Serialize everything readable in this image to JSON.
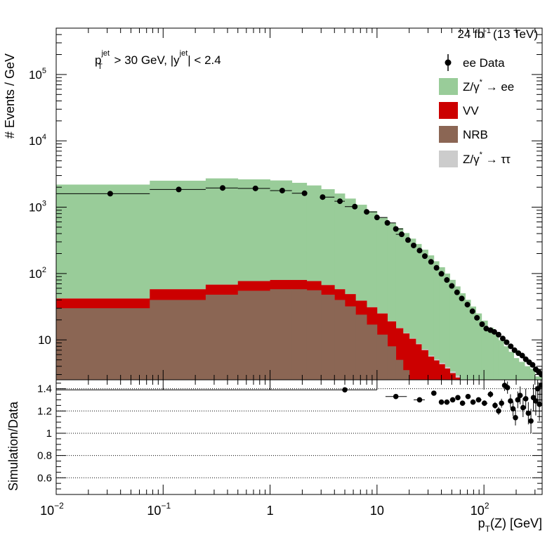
{
  "chart_data": {
    "type": "histogram",
    "x_scale": "log",
    "lumi_label": "24 fb",
    "lumi_sup": "-1",
    "lumi_energy": "(13 TeV)",
    "cut_label": {
      "pt": "p",
      "pt_sup": "jet",
      "pt_sub": "T",
      "pt_cut": " > 30 GeV,  |y",
      "y_sup": "jet",
      "y_cut": "| < 2.4"
    },
    "top_panel": {
      "ylabel": "# Events / GeV",
      "y_scale": "log",
      "ylim": [
        2.5,
        500000
      ],
      "y_ticks": [
        {
          "value": 10,
          "base": "10",
          "exp": ""
        },
        {
          "value": 100,
          "base": "10",
          "exp": "2"
        },
        {
          "value": 1000,
          "base": "10",
          "exp": "3"
        },
        {
          "value": 10000,
          "base": "10",
          "exp": "4"
        },
        {
          "value": 100000,
          "base": "10",
          "exp": "5"
        }
      ],
      "bin_edges": [
        0.01,
        0.075,
        0.25,
        0.5,
        1.0,
        1.6,
        2.2,
        3.0,
        4.0,
        5.0,
        6.3,
        8.0,
        10.0,
        12.5,
        15.0,
        17.5,
        20.0,
        23.0,
        26.0,
        30.0,
        34.0,
        38.0,
        43.0,
        48.0,
        54.0,
        60.0,
        67.0,
        75.0,
        84.0,
        95.0,
        108.0,
        122.0,
        137.0,
        153.0,
        170.0,
        190.0,
        212.0,
        240.0,
        270.0,
        300.0,
        350.0
      ],
      "stack": [
        {
          "name": "NRB",
          "color": "#8b6654",
          "values": [
            30,
            40,
            48,
            55,
            58,
            58,
            56,
            48,
            40,
            32,
            24,
            17,
            12,
            8,
            5,
            3.5,
            2.4,
            1.6,
            1,
            0.6,
            0.4,
            0.3,
            0.2,
            0.15,
            0.1,
            0.08,
            0.06,
            0.04,
            0.03,
            0.02,
            0.015,
            0.01,
            0.01,
            0.01,
            0.01,
            0.01,
            0.01,
            0.01,
            0.01,
            0.01
          ]
        },
        {
          "name": "VV",
          "color": "#cc0000",
          "values": [
            12,
            18,
            20,
            22,
            22,
            22,
            21,
            19,
            18,
            17,
            15,
            14,
            13,
            11,
            10,
            9,
            8,
            7,
            6,
            5,
            4.5,
            4,
            3.5,
            3,
            2.6,
            2.2,
            1.9,
            1.6,
            1.3,
            1.1,
            0.9,
            0.8,
            0.7,
            0.6,
            0.5,
            0.4,
            0.35,
            0.3,
            0.25,
            0.2
          ]
        },
        {
          "name": "Z/γ* → ττ",
          "color": "#cccccc",
          "values": [
            0.2,
            0.2,
            0.2,
            0.2,
            0.2,
            0.2,
            0.2,
            0.2,
            0.2,
            0.2,
            0.2,
            0.2,
            0.2,
            0.2,
            0.2,
            0.2,
            0.2,
            0.2,
            0.2,
            0.2,
            0.2,
            0.2,
            0.2,
            0.2,
            0.2,
            0.2,
            0.2,
            0.2,
            0.2,
            0.2,
            0.2,
            0.2,
            0.2,
            0.2,
            0.2,
            0.2,
            0.2,
            0.2,
            0.2,
            0.2
          ]
        },
        {
          "name": "Z/γ* → ee",
          "color": "#99cc99",
          "values": [
            2150,
            2450,
            2650,
            2550,
            2450,
            2250,
            2050,
            1800,
            1550,
            1300,
            1050,
            840,
            680,
            560,
            470,
            395,
            325,
            270,
            222,
            182,
            148,
            120,
            96,
            77,
            61,
            48,
            38,
            30,
            23.5,
            18.2,
            14.2,
            11.2,
            9,
            7.2,
            5.9,
            4.7,
            4.1,
            3.5,
            3.2,
            2.4
          ]
        }
      ],
      "data_label": "ee Data",
      "data_x": [
        0.032,
        0.14,
        0.36,
        0.73,
        1.3,
        2.1,
        3.1,
        4.5,
        6.2,
        8.0,
        10.0,
        12.5,
        15.0,
        17.0,
        19.5,
        22.0,
        25.0,
        28.0,
        32.0,
        36.0,
        40.0,
        45.0,
        50.0,
        56.0,
        62.0,
        70.0,
        78.0,
        86.0,
        96.0,
        105.0,
        115.0,
        125.0,
        137.0,
        150.0,
        163.0,
        178.0,
        193.0,
        210.0,
        228.0,
        246.0,
        265.0,
        285.0,
        305.0,
        325.0,
        345.0
      ],
      "data_y": [
        1600,
        1850,
        1950,
        1920,
        1780,
        1620,
        1420,
        1230,
        1020,
        850,
        700,
        580,
        470,
        390,
        320,
        265,
        222,
        183,
        150,
        122,
        99,
        80,
        65,
        52,
        42,
        34,
        27,
        21.5,
        17.2,
        14.8,
        14.0,
        13.2,
        12.0,
        10.5,
        9.2,
        8.0,
        7.0,
        6.3,
        5.8,
        5.1,
        4.6,
        4.2,
        3.6,
        3.3,
        3.0
      ]
    },
    "ratio_panel": {
      "ylabel": "Simulation/Data",
      "ylim": [
        0.45,
        1.48
      ],
      "y_ticks": [
        0.6,
        0.8,
        1,
        1.2,
        1.4
      ],
      "reference_lines": [
        0.6,
        0.8,
        1.0,
        1.2,
        1.4
      ],
      "points": [
        {
          "x": 5.0,
          "y": 1.39,
          "xlo": 0.01,
          "xhi": 10,
          "err": 0.01
        },
        {
          "x": 15.0,
          "y": 1.33,
          "xlo": 12,
          "xhi": 19,
          "err": 0.01
        },
        {
          "x": 25.0,
          "y": 1.3,
          "xlo": 22,
          "xhi": 28,
          "err": 0.01
        },
        {
          "x": 34.0,
          "y": 1.36,
          "xlo": 32,
          "xhi": 36,
          "err": 0.01
        },
        {
          "x": 40.0,
          "y": 1.28,
          "xlo": 38,
          "xhi": 43,
          "err": 0.012
        },
        {
          "x": 45.0,
          "y": 1.28,
          "xlo": 43,
          "xhi": 48,
          "err": 0.012
        },
        {
          "x": 51.0,
          "y": 1.3,
          "xlo": 48,
          "xhi": 54,
          "err": 0.013
        },
        {
          "x": 57.0,
          "y": 1.32,
          "xlo": 54,
          "xhi": 60,
          "err": 0.014
        },
        {
          "x": 63.0,
          "y": 1.27,
          "xlo": 60,
          "xhi": 67,
          "err": 0.015
        },
        {
          "x": 71.0,
          "y": 1.33,
          "xlo": 67,
          "xhi": 75,
          "err": 0.016
        },
        {
          "x": 79.0,
          "y": 1.28,
          "xlo": 75,
          "xhi": 84,
          "err": 0.018
        },
        {
          "x": 89.0,
          "y": 1.3,
          "xlo": 84,
          "xhi": 95,
          "err": 0.02
        },
        {
          "x": 101.0,
          "y": 1.27,
          "xlo": 95,
          "xhi": 108,
          "err": 0.025
        },
        {
          "x": 115.0,
          "y": 1.35,
          "xlo": 108,
          "xhi": 122,
          "err": 0.03
        },
        {
          "x": 127.0,
          "y": 1.25,
          "xlo": 122,
          "xhi": 132,
          "err": 0.03
        },
        {
          "x": 137.0,
          "y": 1.2,
          "xlo": 132,
          "xhi": 142,
          "err": 0.035
        },
        {
          "x": 146.0,
          "y": 1.27,
          "xlo": 142,
          "xhi": 150,
          "err": 0.04
        },
        {
          "x": 156.0,
          "y": 1.43,
          "xlo": 150,
          "xhi": 162,
          "err": 0.05
        },
        {
          "x": 166.0,
          "y": 1.41,
          "xlo": 162,
          "xhi": 172,
          "err": 0.055
        },
        {
          "x": 177.0,
          "y": 1.29,
          "xlo": 172,
          "xhi": 182,
          "err": 0.06
        },
        {
          "x": 187.0,
          "y": 1.22,
          "xlo": 182,
          "xhi": 192,
          "err": 0.065
        },
        {
          "x": 197.0,
          "y": 1.14,
          "xlo": 192,
          "xhi": 202,
          "err": 0.07
        },
        {
          "x": 207.0,
          "y": 1.3,
          "xlo": 202,
          "xhi": 212,
          "err": 0.075
        },
        {
          "x": 218.0,
          "y": 1.34,
          "xlo": 212,
          "xhi": 225,
          "err": 0.08
        },
        {
          "x": 232.0,
          "y": 1.23,
          "xlo": 225,
          "xhi": 240,
          "err": 0.085
        },
        {
          "x": 246.0,
          "y": 1.31,
          "xlo": 240,
          "xhi": 253,
          "err": 0.09
        },
        {
          "x": 260.0,
          "y": 1.18,
          "xlo": 253,
          "xhi": 268,
          "err": 0.1
        },
        {
          "x": 275.0,
          "y": 1.11,
          "xlo": 268,
          "xhi": 282,
          "err": 0.11
        },
        {
          "x": 290.0,
          "y": 1.32,
          "xlo": 282,
          "xhi": 298,
          "err": 0.12
        },
        {
          "x": 305.0,
          "y": 1.29,
          "xlo": 298,
          "xhi": 312,
          "err": 0.13
        },
        {
          "x": 318.0,
          "y": 1.4,
          "xlo": 312,
          "xhi": 325,
          "err": 0.14
        },
        {
          "x": 330.0,
          "y": 1.26,
          "xlo": 325,
          "xhi": 336,
          "err": 0.15
        },
        {
          "x": 341.0,
          "y": 1.43,
          "xlo": 336,
          "xhi": 350,
          "err": 0.16
        }
      ]
    },
    "x_axis": {
      "label": "p",
      "label_sub": "T",
      "label_rest": "(Z) [GeV]",
      "xlim": [
        0.01,
        350
      ],
      "ticks": [
        {
          "value": 0.01,
          "base": "10",
          "exp": "−2"
        },
        {
          "value": 0.1,
          "base": "10",
          "exp": "−1"
        },
        {
          "value": 1,
          "base": "1",
          "exp": ""
        },
        {
          "value": 10,
          "base": "10",
          "exp": ""
        },
        {
          "value": 100,
          "base": "10",
          "exp": "2"
        }
      ]
    },
    "legend": {
      "position": "top-right",
      "entries": [
        {
          "label": "ee Data",
          "kind": "marker",
          "color": "#000000"
        },
        {
          "label": "Z/γ",
          "sup": "*",
          "rest": " → ee",
          "kind": "box",
          "color": "#99cc99"
        },
        {
          "label": "VV",
          "kind": "box",
          "color": "#cc0000"
        },
        {
          "label": "NRB",
          "kind": "box",
          "color": "#8b6654"
        },
        {
          "label": "Z/γ",
          "sup": "*",
          "rest": " → ττ",
          "kind": "box",
          "color": "#cccccc"
        }
      ]
    }
  }
}
